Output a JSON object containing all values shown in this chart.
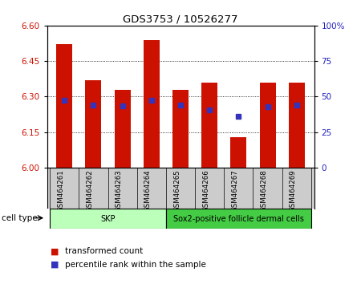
{
  "title": "GDS3753 / 10526277",
  "samples": [
    "GSM464261",
    "GSM464262",
    "GSM464263",
    "GSM464264",
    "GSM464265",
    "GSM464266",
    "GSM464267",
    "GSM464268",
    "GSM464269"
  ],
  "bar_tops": [
    6.52,
    6.37,
    6.33,
    6.54,
    6.33,
    6.36,
    6.13,
    6.36,
    6.36
  ],
  "bar_bottoms": [
    6.0,
    6.0,
    6.0,
    6.0,
    6.0,
    6.0,
    6.0,
    6.0,
    6.0
  ],
  "blue_markers": [
    6.285,
    6.265,
    6.26,
    6.285,
    6.265,
    6.245,
    6.215,
    6.258,
    6.265
  ],
  "ylim": [
    6.0,
    6.6
  ],
  "yticks_left": [
    6.0,
    6.15,
    6.3,
    6.45,
    6.6
  ],
  "yticks_right": [
    0,
    25,
    50,
    75,
    100
  ],
  "bar_color": "#cc1100",
  "blue_color": "#3333bb",
  "cell_type_groups": [
    {
      "label": "SKP",
      "start": 0,
      "end": 4,
      "color": "#bbffbb"
    },
    {
      "label": "Sox2-positive follicle dermal cells",
      "start": 4,
      "end": 9,
      "color": "#44cc44"
    }
  ],
  "cell_type_label": "cell type",
  "legend_items": [
    {
      "color": "#cc1100",
      "label": "transformed count"
    },
    {
      "color": "#3333bb",
      "label": "percentile rank within the sample"
    }
  ],
  "background_color": "#ffffff",
  "plot_bg_color": "#ffffff",
  "tick_label_color_left": "#cc1100",
  "tick_label_color_right": "#2222bb",
  "xlabels_bg": "#cccccc",
  "grid_yticks": [
    6.15,
    6.3,
    6.45
  ]
}
